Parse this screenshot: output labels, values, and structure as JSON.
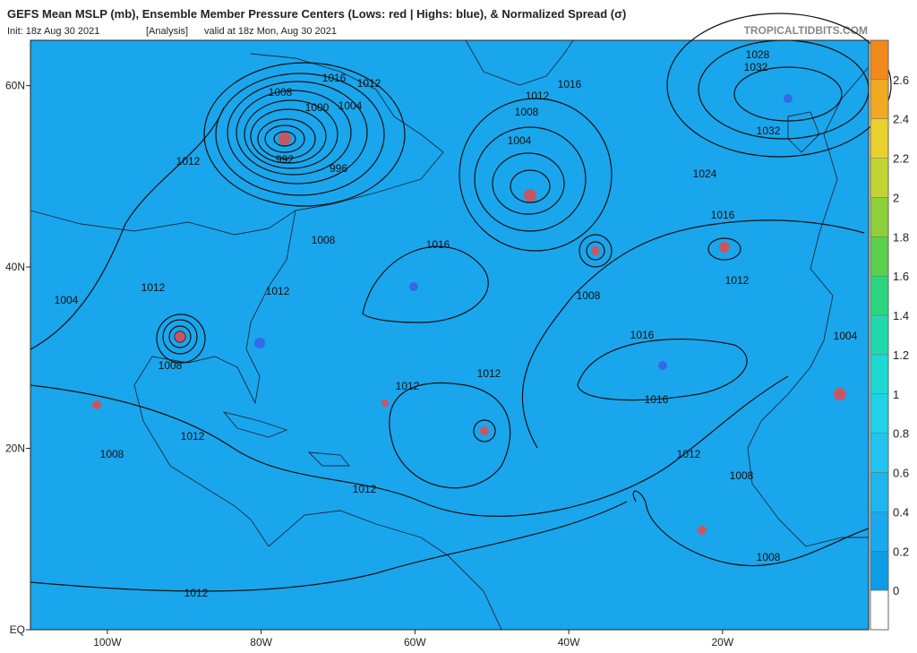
{
  "header": {
    "title": "GEFS Mean MSLP (mb), Ensemble Member Pressure Centers (Lows: red | Highs: blue), & Normalized Spread (σ)",
    "init": "Init: 18z Aug 30 2021",
    "analysis": "[Analysis]",
    "valid": "valid at 18z Mon, Aug 30 2021",
    "credit": "TROPICALTIDBITS.COM"
  },
  "map": {
    "lonlim": [
      -110,
      -1
    ],
    "latlim": [
      0,
      65
    ],
    "lonticks": [
      {
        "value": -100,
        "label": "100W"
      },
      {
        "value": -80,
        "label": "80W"
      },
      {
        "value": -60,
        "label": "60W"
      },
      {
        "value": -40,
        "label": "40W"
      },
      {
        "value": -20,
        "label": "20W"
      }
    ],
    "latticks": [
      {
        "value": 60,
        "label": "60N"
      },
      {
        "value": 40,
        "label": "40N"
      },
      {
        "value": 20,
        "label": "20N"
      },
      {
        "value": 0,
        "label": "EQ"
      }
    ],
    "background": "#1aa6ec",
    "isobar_labels": [
      "1016",
      "1012",
      "1008",
      "1000",
      "1004",
      "992",
      "996",
      "1012",
      "1008",
      "1004",
      "1012",
      "1012",
      "1008",
      "1016",
      "1012",
      "1012",
      "1012",
      "1008",
      "1012",
      "1012",
      "1016",
      "1012",
      "1008",
      "1004",
      "1008",
      "1016",
      "1016",
      "1012",
      "1008",
      "1008",
      "1024",
      "1016",
      "1012",
      "1028",
      "1032",
      "1032",
      "1004"
    ]
  },
  "colorbar": {
    "range": [
      -0.2,
      2.8
    ],
    "ticks": [
      0,
      0.2,
      0.4,
      0.6,
      0.8,
      1,
      1.2,
      1.4,
      1.6,
      1.8,
      2,
      2.2,
      2.4,
      2.6
    ],
    "colors": [
      "#ffffff",
      "#0d9ce6",
      "#18a9ee",
      "#1fb6f0",
      "#22c4ef",
      "#20d2ea",
      "#1dd9d4",
      "#1fd9ac",
      "#2bd67e",
      "#5ad04c",
      "#8ed03a",
      "#c0d534",
      "#e8d02e",
      "#f2aa22",
      "#f28a1a"
    ]
  }
}
